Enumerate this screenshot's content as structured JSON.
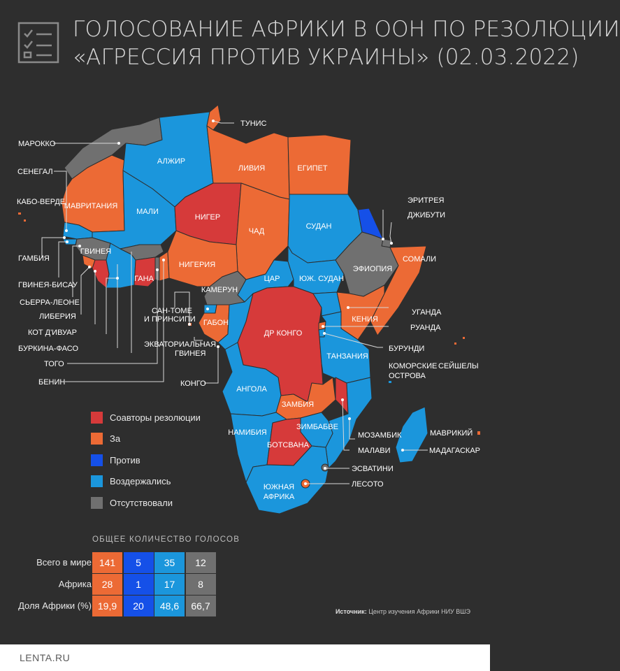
{
  "title": {
    "line1": "ГОЛОСОВАНИЕ АФРИКИ В ООН ПО РЕЗОЛЮЦИИ",
    "line2": "«АГРЕССИЯ ПРОТИВ УКРАИНЫ» (02.03.2022)"
  },
  "colors": {
    "background": "#2e2e2e",
    "coauthor": "#d63a3a",
    "for": "#ec6a35",
    "against": "#1550e8",
    "abstained": "#1b96dc",
    "absent": "#707070"
  },
  "legend": [
    {
      "label": "Соавторы резолюции",
      "color": "#d63a3a"
    },
    {
      "label": "За",
      "color": "#ec6a35"
    },
    {
      "label": "Против",
      "color": "#1550e8"
    },
    {
      "label": "Воздержались",
      "color": "#1b96dc"
    },
    {
      "label": "Отсутствовали",
      "color": "#707070"
    }
  ],
  "map": {
    "country_labels": {
      "algeria": "АЛЖИР",
      "libya": "ЛИВИЯ",
      "egypt": "ЕГИПЕТ",
      "mauritania": "МАВРИТАНИЯ",
      "mali": "МАЛИ",
      "niger": "НИГЕР",
      "chad": "ЧАД",
      "sudan": "СУДАН",
      "guinea": "ГВИНЕЯ",
      "ghana": "ГАНА",
      "nigeria": "НИГЕРИЯ",
      "car": "ЦАР",
      "south_sudan": "ЮЖ. СУДАН",
      "ethiopia": "ЭФИОПИЯ",
      "somalia": "СОМАЛИ",
      "cameroon": "КАМЕРУН",
      "gabon": "ГАБОН",
      "drc": "ДР КОНГО",
      "kenya": "КЕНИЯ",
      "tanzania": "ТАНЗАНИЯ",
      "angola": "АНГОЛА",
      "zambia": "ЗАМБИЯ",
      "namibia": "НАМИБИЯ",
      "zimbabwe": "ЗИМБАБВЕ",
      "botswana": "БОТСВАНА",
      "south_africa_1": "ЮЖНАЯ",
      "south_africa_2": "АФРИКА"
    },
    "callouts": {
      "tunisia": "ТУНИС",
      "morocco": "МАРОККО",
      "senegal": "СЕНЕГАЛ",
      "cabo_verde": "КАБО-ВЕРДЕ",
      "gambia": "ГАМБИЯ",
      "guinea_bissau": "ГВИНЕЯ-БИСАУ",
      "sierra_leone": "СЬЕРРА-ЛЕОНЕ",
      "liberia": "ЛИБЕРИЯ",
      "cote_divoire": "КОТ Д'ИВУАР",
      "burkina_faso": "БУРКИНА-ФАСО",
      "togo": "ТОГО",
      "benin": "БЕНИН",
      "sao_tome_1": "САН-ТОМЕ",
      "sao_tome_2": "И ПРИНСИПИ",
      "eq_guinea_1": "ЭКВАТОРИАЛЬНАЯ",
      "eq_guinea_2": "ГВИНЕЯ",
      "congo": "КОНГО",
      "eritrea": "ЭРИТРЕЯ",
      "djibouti": "ДЖИБУТИ",
      "uganda": "УГАНДА",
      "rwanda": "РУАНДА",
      "burundi": "БУРУНДИ",
      "comoros_1": "КОМОРСКИЕ",
      "comoros_2": "ОСТРОВА",
      "seychelles": "СЕЙШЕЛЫ",
      "mozambique": "МОЗАМБИК",
      "malawi": "МАЛАВИ",
      "mauritius": "МАВРИКИЙ",
      "madagascar": "МАДАГАСКАР",
      "eswatini": "ЭСВАТИНИ",
      "lesotho": "ЛЕСОТО"
    }
  },
  "totals": {
    "title": "ОБЩЕЕ КОЛИЧЕСТВО ГОЛОСОВ",
    "rows": [
      {
        "label": "Всего в мире",
        "values": [
          "141",
          "5",
          "35",
          "12"
        ]
      },
      {
        "label": "Африка",
        "values": [
          "28",
          "1",
          "17",
          "8"
        ]
      },
      {
        "label": "Доля Африки (%)",
        "values": [
          "19,9",
          "20",
          "48,6",
          "66,7"
        ]
      }
    ]
  },
  "source": {
    "label": "Источник:",
    "text": "Центр изучения Африки НИУ ВШЭ"
  },
  "footer": {
    "logo": "LENTA.RU"
  }
}
